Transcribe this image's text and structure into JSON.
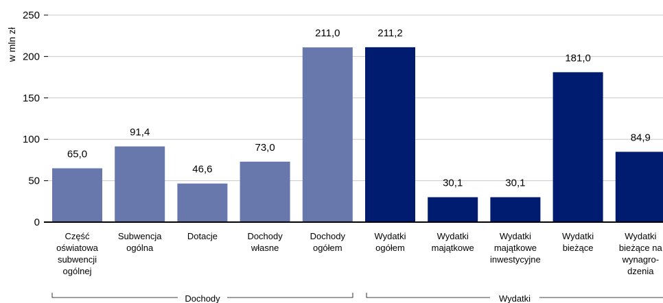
{
  "chart_data": {
    "type": "bar",
    "ylabel": "w mln zł",
    "ylim": [
      0,
      250
    ],
    "yticks": [
      0,
      50,
      100,
      150,
      200,
      250
    ],
    "grid": true,
    "categories": [
      [
        "Część",
        "oświatowa",
        "subwencji",
        "ogólnej"
      ],
      [
        "Subwencja",
        "ogólna"
      ],
      [
        "Dotacje"
      ],
      [
        "Dochody",
        "własne"
      ],
      [
        "Dochody",
        "ogółem"
      ],
      [
        "Wydatki",
        "ogółem"
      ],
      [
        "Wydatki",
        "majątkowe"
      ],
      [
        "Wydatki",
        "majątkowe",
        "inwestycyjne"
      ],
      [
        "Wydatki",
        "bieżące"
      ],
      [
        "Wydatki",
        "bieżące na",
        "wynagro-",
        "dzenia"
      ]
    ],
    "values": [
      65.0,
      91.4,
      46.6,
      73.0,
      211.0,
      211.2,
      30.1,
      30.1,
      181.0,
      84.9
    ],
    "value_labels": [
      "65,0",
      "91,4",
      "46,6",
      "73,0",
      "211,0",
      "211,2",
      "30,1",
      "30,1",
      "181,0",
      "84,9"
    ],
    "groups": [
      {
        "name": "Dochody",
        "start": 0,
        "end": 4,
        "color": "#6878ad"
      },
      {
        "name": "Wydatki",
        "start": 5,
        "end": 9,
        "color": "#001c71"
      }
    ]
  }
}
